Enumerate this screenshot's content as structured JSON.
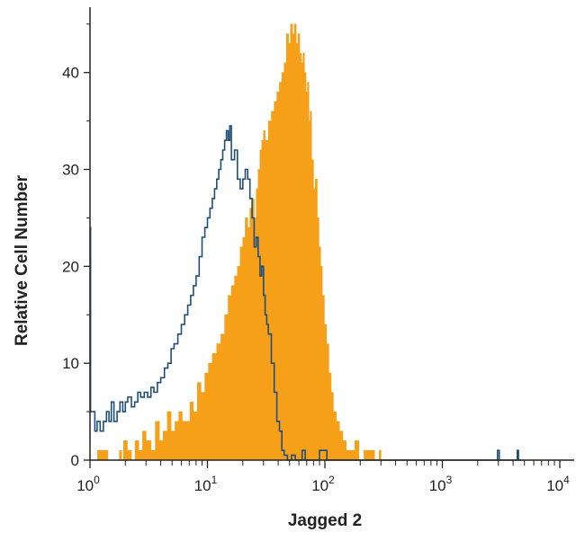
{
  "chart_data": {
    "type": "histogram",
    "xlabel": "Jagged 2",
    "ylabel": "Relative Cell Number",
    "x_scale": "log",
    "xlim": [
      1,
      10000
    ],
    "ylim": [
      0,
      46
    ],
    "x_ticks": [
      {
        "value": 1,
        "base": "10",
        "exp": "0"
      },
      {
        "value": 10,
        "base": "10",
        "exp": "1"
      },
      {
        "value": 100,
        "base": "10",
        "exp": "2"
      },
      {
        "value": 1000,
        "base": "10",
        "exp": "3"
      },
      {
        "value": 10000,
        "base": "10",
        "exp": "4"
      }
    ],
    "y_ticks": [
      0,
      10,
      20,
      30,
      40
    ],
    "grid": false,
    "legend": "none",
    "series": [
      {
        "style": "filled",
        "color": "#f6a01a",
        "points": [
          [
            1.12,
            0
          ],
          [
            1.16,
            1
          ],
          [
            1.35,
            1
          ],
          [
            1.42,
            0
          ],
          [
            1.7,
            0
          ],
          [
            1.78,
            1
          ],
          [
            1.86,
            0
          ],
          [
            1.93,
            2
          ],
          [
            2.08,
            1
          ],
          [
            2.25,
            0
          ],
          [
            2.42,
            2
          ],
          [
            2.6,
            1
          ],
          [
            2.8,
            3
          ],
          [
            3.0,
            2
          ],
          [
            3.3,
            1
          ],
          [
            3.6,
            4
          ],
          [
            3.9,
            2
          ],
          [
            4.2,
            3
          ],
          [
            4.55,
            5
          ],
          [
            4.9,
            3
          ],
          [
            5.3,
            4
          ],
          [
            5.7,
            5
          ],
          [
            6.1,
            4
          ],
          [
            6.6,
            4
          ],
          [
            7.1,
            6
          ],
          [
            7.6,
            5
          ],
          [
            8.2,
            8
          ],
          [
            8.8,
            7
          ],
          [
            9.5,
            9
          ],
          [
            10.2,
            10
          ],
          [
            11.0,
            11
          ],
          [
            12.0,
            12
          ],
          [
            13.0,
            13
          ],
          [
            14.0,
            15
          ],
          [
            15.0,
            17
          ],
          [
            16.0,
            18
          ],
          [
            17.0,
            19
          ],
          [
            18.0,
            20
          ],
          [
            19.0,
            22
          ],
          [
            20.0,
            23
          ],
          [
            21.0,
            25
          ],
          [
            22.0,
            24
          ],
          [
            23.0,
            26
          ],
          [
            24.0,
            27
          ],
          [
            25.0,
            25
          ],
          [
            26.0,
            28
          ],
          [
            27.0,
            30
          ],
          [
            28.0,
            32
          ],
          [
            29.0,
            33
          ],
          [
            30.0,
            34
          ],
          [
            31.0,
            33
          ],
          [
            33.0,
            35
          ],
          [
            35.0,
            36
          ],
          [
            37.0,
            37
          ],
          [
            39.0,
            38
          ],
          [
            41.0,
            39
          ],
          [
            43.0,
            40
          ],
          [
            45.0,
            41
          ],
          [
            47.0,
            44
          ],
          [
            49.0,
            43
          ],
          [
            51.0,
            45
          ],
          [
            53.0,
            44
          ],
          [
            55.0,
            45
          ],
          [
            57.0,
            43
          ],
          [
            59.0,
            44
          ],
          [
            61.0,
            42
          ],
          [
            63.0,
            41
          ],
          [
            65.0,
            42
          ],
          [
            67.0,
            40
          ],
          [
            69.0,
            38
          ],
          [
            71.0,
            39
          ],
          [
            73.0,
            35
          ],
          [
            75.0,
            36
          ],
          [
            77.0,
            31
          ],
          [
            80.0,
            28
          ],
          [
            83.0,
            29
          ],
          [
            86.0,
            25
          ],
          [
            89.0,
            22
          ],
          [
            92.0,
            20
          ],
          [
            95.0,
            17
          ],
          [
            99.0,
            14
          ],
          [
            103,
            12
          ],
          [
            108,
            9
          ],
          [
            113,
            7
          ],
          [
            118,
            5
          ],
          [
            125,
            4
          ],
          [
            133,
            3
          ],
          [
            142,
            2
          ],
          [
            152,
            1
          ],
          [
            165,
            1
          ],
          [
            180,
            2
          ],
          [
            195,
            0
          ],
          [
            215,
            1
          ],
          [
            240,
            1
          ],
          [
            265,
            0
          ],
          [
            290,
            1
          ],
          [
            300,
            0
          ]
        ]
      },
      {
        "style": "outline",
        "color": "#1f4e79",
        "points": [
          [
            1.0,
            24
          ],
          [
            1.01,
            5
          ],
          [
            1.05,
            5
          ],
          [
            1.1,
            3
          ],
          [
            1.15,
            4
          ],
          [
            1.22,
            3
          ],
          [
            1.3,
            4
          ],
          [
            1.38,
            5
          ],
          [
            1.45,
            4
          ],
          [
            1.52,
            6
          ],
          [
            1.6,
            4
          ],
          [
            1.7,
            5
          ],
          [
            1.8,
            6
          ],
          [
            1.9,
            5
          ],
          [
            2.0,
            6
          ],
          [
            2.1,
            6.5
          ],
          [
            2.25,
            5.5
          ],
          [
            2.4,
            6
          ],
          [
            2.55,
            7
          ],
          [
            2.7,
            6.5
          ],
          [
            2.9,
            7
          ],
          [
            3.1,
            6.5
          ],
          [
            3.3,
            7.5
          ],
          [
            3.5,
            7
          ],
          [
            3.75,
            8
          ],
          [
            4.0,
            8.5
          ],
          [
            4.3,
            9.5
          ],
          [
            4.6,
            10
          ],
          [
            4.9,
            11.5
          ],
          [
            5.2,
            12
          ],
          [
            5.6,
            13
          ],
          [
            6.0,
            14
          ],
          [
            6.4,
            15
          ],
          [
            6.8,
            16
          ],
          [
            7.2,
            17
          ],
          [
            7.6,
            18
          ],
          [
            8.0,
            19
          ],
          [
            8.5,
            21
          ],
          [
            9.0,
            23
          ],
          [
            9.5,
            24
          ],
          [
            10.0,
            25
          ],
          [
            10.5,
            26
          ],
          [
            11.0,
            27
          ],
          [
            11.5,
            28
          ],
          [
            12.0,
            29
          ],
          [
            12.5,
            30
          ],
          [
            13.0,
            31
          ],
          [
            13.5,
            32
          ],
          [
            14.0,
            33
          ],
          [
            14.5,
            34
          ],
          [
            15.0,
            33
          ],
          [
            15.5,
            34.5
          ],
          [
            16.0,
            31
          ],
          [
            17.0,
            32
          ],
          [
            18.0,
            29
          ],
          [
            19.0,
            28
          ],
          [
            20.0,
            29
          ],
          [
            21.0,
            30
          ],
          [
            22.0,
            29
          ],
          [
            23.0,
            27
          ],
          [
            24.0,
            25
          ],
          [
            25.0,
            22
          ],
          [
            26.0,
            23
          ],
          [
            27.0,
            21
          ],
          [
            28.0,
            19
          ],
          [
            29.0,
            20
          ],
          [
            30.0,
            17
          ],
          [
            31.0,
            15
          ],
          [
            32.0,
            14
          ],
          [
            33.0,
            13
          ],
          [
            35.0,
            10
          ],
          [
            37.0,
            7
          ],
          [
            39.0,
            4
          ],
          [
            41.0,
            3
          ],
          [
            43.0,
            1
          ],
          [
            45.0,
            0.5
          ],
          [
            48.0,
            0
          ],
          [
            52.0,
            0.5
          ],
          [
            56.0,
            0
          ],
          [
            60.0,
            0
          ],
          [
            64.0,
            1
          ],
          [
            68.0,
            0
          ],
          [
            80.0,
            0
          ],
          [
            90.0,
            1
          ],
          [
            98.0,
            1
          ],
          [
            104,
            0
          ],
          [
            2850,
            0
          ],
          [
            2950,
            1
          ],
          [
            3050,
            0
          ],
          [
            4250,
            0
          ],
          [
            4350,
            1
          ],
          [
            4450,
            0
          ],
          [
            4700,
            0
          ]
        ]
      }
    ]
  }
}
